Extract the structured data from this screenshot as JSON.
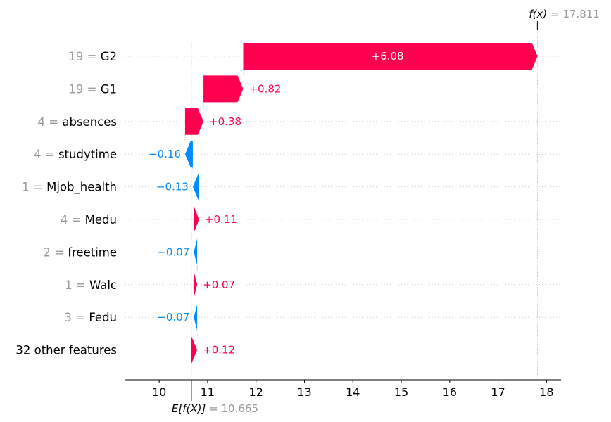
{
  "chart_data": {
    "type": "waterfall",
    "base_value": 10.665,
    "output_value": 17.811,
    "base_label": "E[f(X)]",
    "base_value_text": "= 10.665",
    "output_label": "f(x)",
    "output_value_text": "= 17.811",
    "xlim": [
      9.3,
      18.3
    ],
    "x_ticks": [
      10,
      11,
      12,
      13,
      14,
      15,
      16,
      17,
      18
    ],
    "positive_color": "#ff0051",
    "negative_color": "#008bfb",
    "features": [
      {
        "value": "19",
        "name": "G2",
        "contribution": 6.08,
        "label": "+6.08"
      },
      {
        "value": "19",
        "name": "G1",
        "contribution": 0.82,
        "label": "+0.82"
      },
      {
        "value": "4",
        "name": "absences",
        "contribution": 0.38,
        "label": "+0.38"
      },
      {
        "value": "4",
        "name": "studytime",
        "contribution": -0.16,
        "label": "−0.16"
      },
      {
        "value": "1",
        "name": "Mjob_health",
        "contribution": -0.13,
        "label": "−0.13"
      },
      {
        "value": "4",
        "name": "Medu",
        "contribution": 0.11,
        "label": "+0.11"
      },
      {
        "value": "2",
        "name": "freetime",
        "contribution": -0.07,
        "label": "−0.07"
      },
      {
        "value": "1",
        "name": "Walc",
        "contribution": 0.07,
        "label": "+0.07"
      },
      {
        "value": "3",
        "name": "Fedu",
        "contribution": -0.07,
        "label": "−0.07"
      },
      {
        "value": "",
        "name": "32 other features",
        "contribution": 0.12,
        "label": "+0.12"
      }
    ]
  }
}
